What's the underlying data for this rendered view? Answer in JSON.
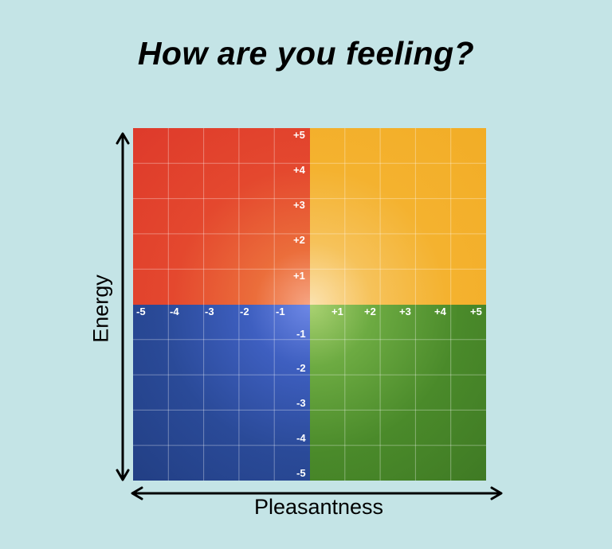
{
  "title": "How are you feeling?",
  "axes": {
    "x_label": "Pleasantness",
    "y_label": "Energy",
    "x_ticks_negative": [
      "-5",
      "-4",
      "-3",
      "-2",
      "-1"
    ],
    "x_ticks_positive": [
      "+1",
      "+2",
      "+3",
      "+4",
      "+5"
    ],
    "y_ticks_positive": [
      "+5",
      "+4",
      "+3",
      "+2",
      "+1"
    ],
    "y_ticks_negative": [
      "-1",
      "-2",
      "-3",
      "-4",
      "-5"
    ]
  },
  "quadrant_colors": {
    "high_energy_unpleasant": "#de3a2b",
    "high_energy_pleasant": "#f2ad26",
    "low_energy_unpleasant": "#223f84",
    "low_energy_pleasant": "#3f7a24"
  }
}
